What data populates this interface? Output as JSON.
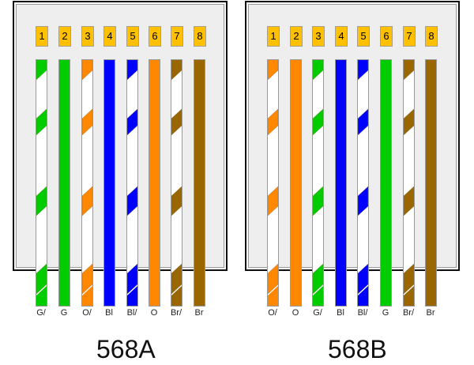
{
  "colors": {
    "green": "#00cc00",
    "orange": "#ff8800",
    "blue": "#0000ff",
    "brown": "#996600",
    "white": "#ffffff",
    "pin_label_bg": "#ffc000",
    "panel_bg": "#eeeeee"
  },
  "standards": [
    {
      "title": "568A",
      "pins": [
        {
          "number": "1",
          "code": "G/",
          "color": "green",
          "striped": true
        },
        {
          "number": "2",
          "code": "G",
          "color": "green",
          "striped": false
        },
        {
          "number": "3",
          "code": "O/",
          "color": "orange",
          "striped": true
        },
        {
          "number": "4",
          "code": "Bl",
          "color": "blue",
          "striped": false
        },
        {
          "number": "5",
          "code": "Bl/",
          "color": "blue",
          "striped": true
        },
        {
          "number": "6",
          "code": "O",
          "color": "orange",
          "striped": false
        },
        {
          "number": "7",
          "code": "Br/",
          "color": "brown",
          "striped": true
        },
        {
          "number": "8",
          "code": "Br",
          "color": "brown",
          "striped": false
        }
      ]
    },
    {
      "title": "568B",
      "pins": [
        {
          "number": "1",
          "code": "O/",
          "color": "orange",
          "striped": true
        },
        {
          "number": "2",
          "code": "O",
          "color": "orange",
          "striped": false
        },
        {
          "number": "3",
          "code": "G/",
          "color": "green",
          "striped": true
        },
        {
          "number": "4",
          "code": "Bl",
          "color": "blue",
          "striped": false
        },
        {
          "number": "5",
          "code": "Bl/",
          "color": "blue",
          "striped": true
        },
        {
          "number": "6",
          "code": "G",
          "color": "green",
          "striped": false
        },
        {
          "number": "7",
          "code": "Br/",
          "color": "brown",
          "striped": true
        },
        {
          "number": "8",
          "code": "Br",
          "color": "brown",
          "striped": false
        }
      ]
    }
  ]
}
